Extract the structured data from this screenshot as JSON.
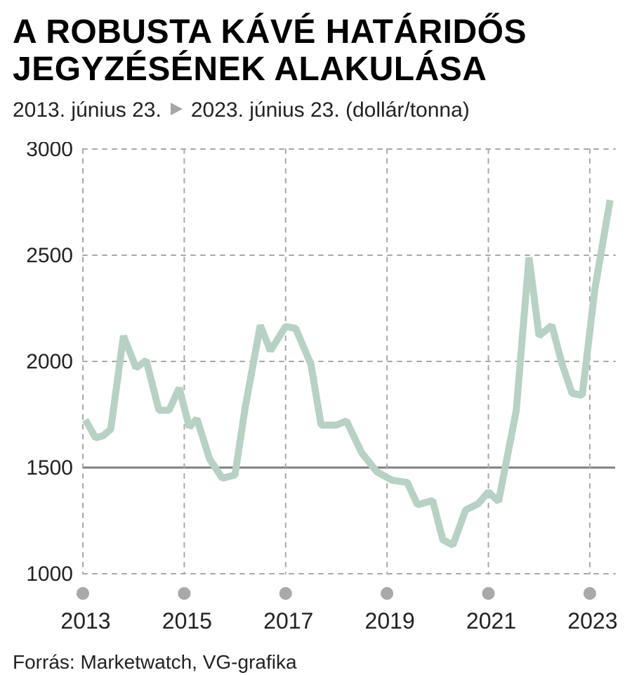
{
  "title": "A ROBUSTA KÁVÉ HATÁRIDŐS JEGYZÉSÉNEK ALAKULÁSA",
  "subtitle": {
    "from": "2013. június 23.",
    "to": "2023. június 23. (dollár/tonna)"
  },
  "source": "Forrás: Marketwatch, VG-grafika",
  "chart": {
    "type": "line",
    "background_color": "#ffffff",
    "yaxis": {
      "min": 1000,
      "max": 3000,
      "tick_step": 500,
      "ticks": [
        1000,
        1500,
        2000,
        2500,
        3000
      ],
      "label_fontsize": 30,
      "label_color": "#222222"
    },
    "xaxis": {
      "min": 2013,
      "max": 2023.5,
      "dot_years": [
        2013,
        2015,
        2017,
        2019,
        2021,
        2023
      ],
      "label_years": [
        2013,
        2015,
        2017,
        2019,
        2021,
        2023
      ],
      "dot_color": "#a9a9a9",
      "dot_radius": 9,
      "label_fontsize": 32,
      "label_color": "#222222"
    },
    "grid": {
      "color": "#a8a8a8",
      "major_width": 2,
      "dash": [
        6,
        8
      ],
      "solid_y_at": 1500,
      "solid_width": 3,
      "solid_color": "#808080"
    },
    "series": {
      "color": "#b7d2c5",
      "width": 10,
      "linejoin": "bevel",
      "points": [
        [
          2013.05,
          1725
        ],
        [
          2013.25,
          1640
        ],
        [
          2013.4,
          1650
        ],
        [
          2013.55,
          1680
        ],
        [
          2013.8,
          2120
        ],
        [
          2014.05,
          1970
        ],
        [
          2014.25,
          2005
        ],
        [
          2014.5,
          1770
        ],
        [
          2014.7,
          1770
        ],
        [
          2014.9,
          1875
        ],
        [
          2015.1,
          1690
        ],
        [
          2015.25,
          1730
        ],
        [
          2015.5,
          1540
        ],
        [
          2015.75,
          1450
        ],
        [
          2016.0,
          1465
        ],
        [
          2016.2,
          1780
        ],
        [
          2016.5,
          2170
        ],
        [
          2016.7,
          2050
        ],
        [
          2017.0,
          2165
        ],
        [
          2017.2,
          2155
        ],
        [
          2017.5,
          1985
        ],
        [
          2017.7,
          1700
        ],
        [
          2018.0,
          1700
        ],
        [
          2018.2,
          1720
        ],
        [
          2018.5,
          1570
        ],
        [
          2018.8,
          1480
        ],
        [
          2019.1,
          1440
        ],
        [
          2019.4,
          1430
        ],
        [
          2019.6,
          1325
        ],
        [
          2019.9,
          1345
        ],
        [
          2020.1,
          1160
        ],
        [
          2020.3,
          1135
        ],
        [
          2020.55,
          1300
        ],
        [
          2020.8,
          1330
        ],
        [
          2021.0,
          1385
        ],
        [
          2021.2,
          1340
        ],
        [
          2021.55,
          1770
        ],
        [
          2021.8,
          2490
        ],
        [
          2022.0,
          2120
        ],
        [
          2022.25,
          2170
        ],
        [
          2022.45,
          1990
        ],
        [
          2022.65,
          1850
        ],
        [
          2022.85,
          1840
        ],
        [
          2023.1,
          2340
        ],
        [
          2023.4,
          2760
        ]
      ]
    }
  }
}
